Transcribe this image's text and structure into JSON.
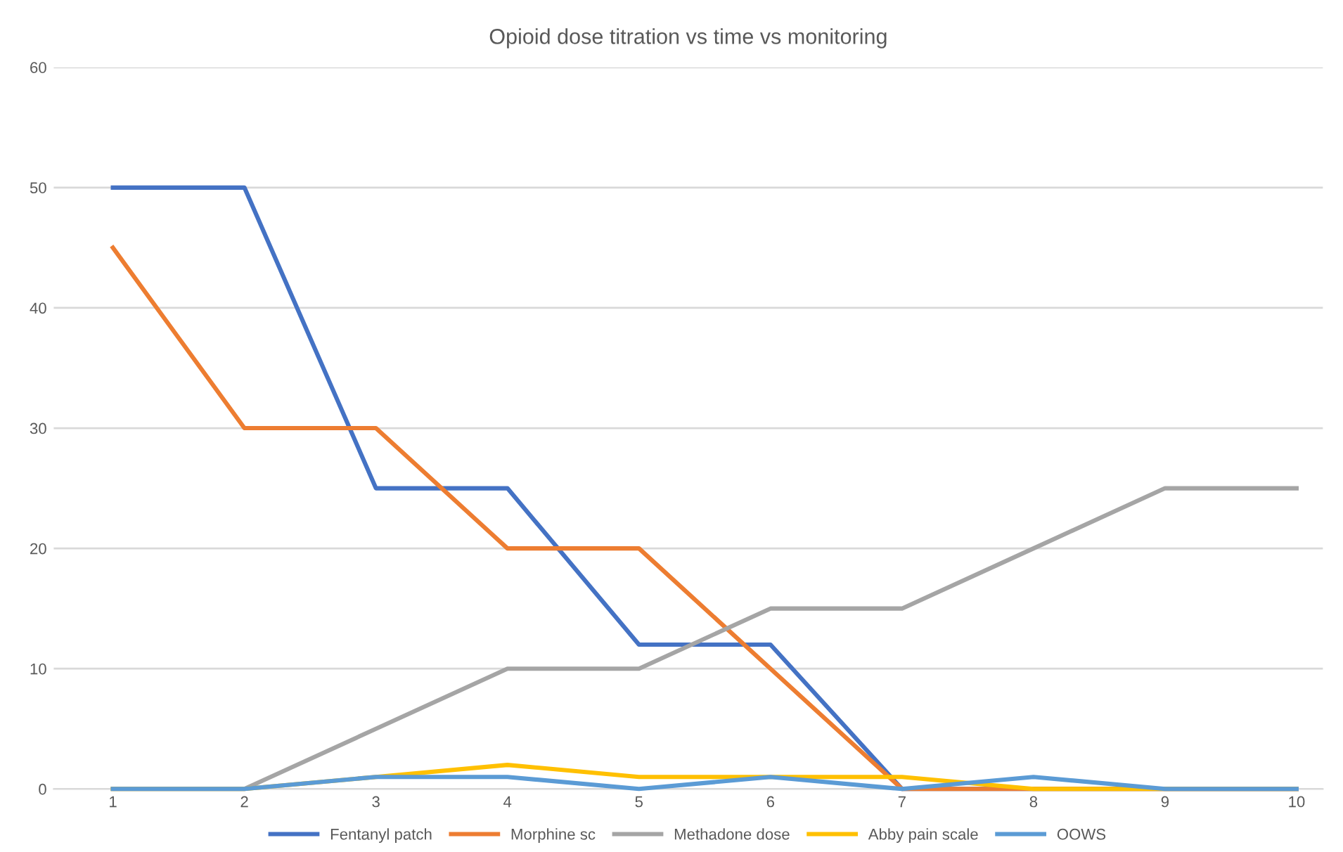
{
  "chart_data": {
    "type": "line",
    "title": "Opioid dose titration vs time vs monitoring",
    "categories": [
      "1",
      "2",
      "3",
      "4",
      "5",
      "6",
      "7",
      "8",
      "9",
      "10"
    ],
    "series": [
      {
        "name": "Fentanyl patch",
        "color": "#4472c4",
        "values": [
          50,
          50,
          25,
          25,
          12,
          12,
          0,
          0,
          0,
          0
        ]
      },
      {
        "name": "Morphine sc",
        "color": "#ed7d31",
        "values": [
          45,
          30,
          30,
          20,
          20,
          10,
          0,
          0,
          0,
          0
        ]
      },
      {
        "name": "Methadone dose",
        "color": "#a5a5a5",
        "values": [
          0,
          0,
          5,
          10,
          10,
          15,
          15,
          20,
          25,
          25
        ]
      },
      {
        "name": "Abby pain scale",
        "color": "#ffc000",
        "values": [
          0,
          0,
          1,
          2,
          1,
          1,
          1,
          0,
          0,
          0
        ]
      },
      {
        "name": "OOWS",
        "color": "#5b9bd5",
        "values": [
          0,
          0,
          1,
          1,
          0,
          1,
          0,
          1,
          0,
          0
        ]
      }
    ],
    "ylim": [
      0,
      60
    ],
    "yticks": [
      0,
      10,
      20,
      30,
      40,
      50,
      60
    ],
    "grid": "y",
    "legend": "bottom",
    "marker": "none",
    "line_style": "solid"
  }
}
